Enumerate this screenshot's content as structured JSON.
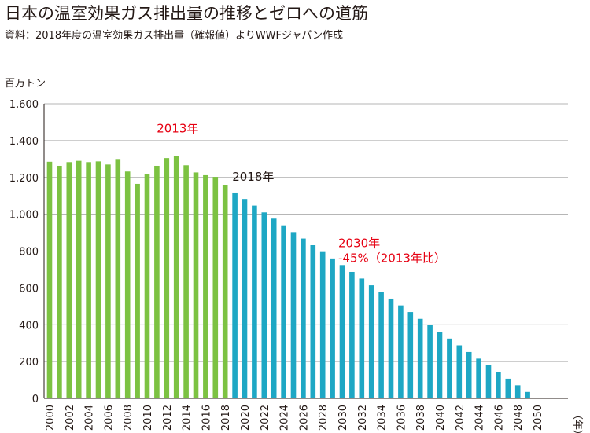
{
  "title": "日本の温室効果ガス排出量の推移とゼロへの道筋",
  "subtitle": "資料：2018年度の温室効果ガス排出量（確報値）よりWWFジャパン作成",
  "chart_data": {
    "type": "bar",
    "ylabel": "百万トン",
    "xlabel": "（年）",
    "ylim": [
      0,
      1600
    ],
    "yticks": [
      0,
      200,
      400,
      600,
      800,
      1000,
      1200,
      1400,
      1600
    ],
    "ytick_labels": [
      "0",
      "200",
      "400",
      "600",
      "800",
      "1,000",
      "1,200",
      "1,400",
      "1,600"
    ],
    "xtick_labels": [
      "2000",
      "2002",
      "2004",
      "2006",
      "2008",
      "2010",
      "2012",
      "2014",
      "2016",
      "2018",
      "2020",
      "2022",
      "2024",
      "2026",
      "2028",
      "2030",
      "2032",
      "2034",
      "2036",
      "2038",
      "2040",
      "2042",
      "2044",
      "2046",
      "2048",
      "2050"
    ],
    "grid": "horizontal",
    "colors": {
      "actual": "#7cc242",
      "projected": "#1ea7c4",
      "annotation_red": "#e60012",
      "annotation_black": "#231815",
      "grid": "#9e9e9e"
    },
    "series": [
      {
        "x": [
          2000,
          2001,
          2002,
          2003,
          2004,
          2005,
          2006,
          2007,
          2008,
          2009,
          2010,
          2011,
          2012,
          2013,
          2014,
          2015,
          2016,
          2017,
          2018
        ],
        "values": [
          1285,
          1263,
          1283,
          1290,
          1283,
          1287,
          1270,
          1300,
          1232,
          1165,
          1217,
          1263,
          1305,
          1317,
          1266,
          1227,
          1212,
          1203,
          1157
        ],
        "color": "#7cc242"
      },
      {
        "x": [
          2019,
          2020,
          2021,
          2022,
          2023,
          2024,
          2025,
          2026,
          2027,
          2028,
          2029,
          2030,
          2031,
          2032,
          2033,
          2034,
          2035,
          2036,
          2037,
          2038,
          2039,
          2040,
          2041,
          2042,
          2043,
          2044,
          2045,
          2046,
          2047,
          2048,
          2049
        ],
        "values": [
          1118,
          1083,
          1047,
          1010,
          976,
          940,
          903,
          868,
          832,
          795,
          760,
          724,
          687,
          651,
          614,
          578,
          542,
          505,
          469,
          432,
          397,
          361,
          325,
          288,
          252,
          216,
          180,
          143,
          107,
          71,
          35
        ],
        "color": "#1ea7c4"
      }
    ],
    "annotations": [
      {
        "id": "a2013",
        "x": 2013,
        "value": 1317,
        "lines": [
          "2013年"
        ],
        "color": "#e60012"
      },
      {
        "id": "a2018",
        "x": 2018,
        "value": 1157,
        "lines": [
          "2018年"
        ],
        "color": "#231815"
      },
      {
        "id": "a2030",
        "x": 2030,
        "value": 724,
        "lines": [
          "2030年",
          "-45%（2013年比）"
        ],
        "color": "#e60012"
      }
    ]
  }
}
